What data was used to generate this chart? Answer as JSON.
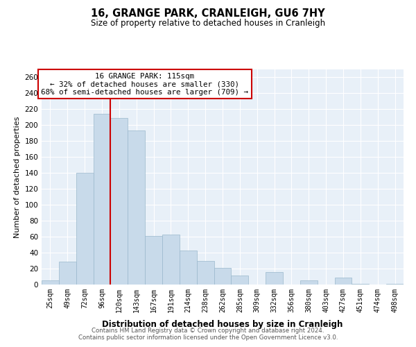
{
  "title": "16, GRANGE PARK, CRANLEIGH, GU6 7HY",
  "subtitle": "Size of property relative to detached houses in Cranleigh",
  "xlabel": "Distribution of detached houses by size in Cranleigh",
  "ylabel": "Number of detached properties",
  "bar_color": "#c8daea",
  "bar_edge_color": "#9ab8cc",
  "categories": [
    "25sqm",
    "49sqm",
    "72sqm",
    "96sqm",
    "120sqm",
    "143sqm",
    "167sqm",
    "191sqm",
    "214sqm",
    "238sqm",
    "262sqm",
    "285sqm",
    "309sqm",
    "332sqm",
    "356sqm",
    "380sqm",
    "403sqm",
    "427sqm",
    "451sqm",
    "474sqm",
    "498sqm"
  ],
  "values": [
    5,
    29,
    140,
    214,
    209,
    193,
    61,
    63,
    43,
    30,
    21,
    11,
    0,
    16,
    0,
    5,
    0,
    9,
    1,
    0,
    1
  ],
  "ylim": [
    0,
    270
  ],
  "yticks": [
    0,
    20,
    40,
    60,
    80,
    100,
    120,
    140,
    160,
    180,
    200,
    220,
    240,
    260
  ],
  "vline_color": "#cc0000",
  "annotation_title": "16 GRANGE PARK: 115sqm",
  "annotation_line1": "← 32% of detached houses are smaller (330)",
  "annotation_line2": "68% of semi-detached houses are larger (709) →",
  "footnote1": "Contains HM Land Registry data © Crown copyright and database right 2024.",
  "footnote2": "Contains public sector information licensed under the Open Government Licence v3.0.",
  "background_color": "#ffffff",
  "plot_bg_color": "#e8f0f8",
  "grid_color": "#ffffff"
}
